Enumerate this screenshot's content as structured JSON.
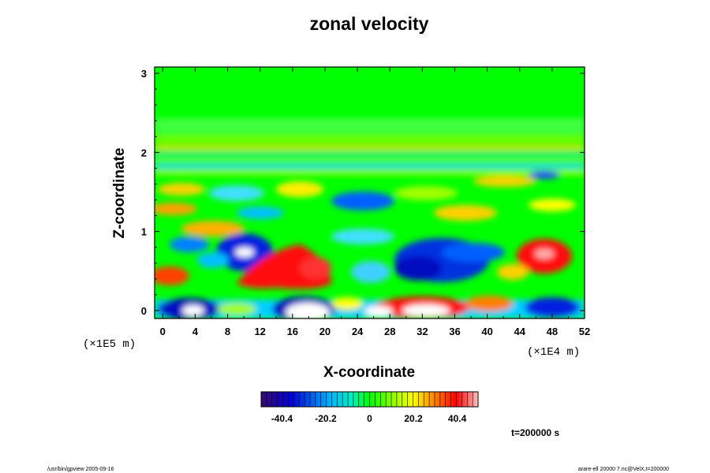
{
  "chart_data": {
    "type": "heatmap",
    "title": "zonal velocity",
    "xlabel": "X-coordinate",
    "ylabel": "Z-coordinate",
    "x_scale_label": "(×1E4 m)",
    "y_scale_label": "(×1E5 m)",
    "x_ticks": [
      0,
      4,
      8,
      12,
      16,
      20,
      24,
      28,
      32,
      36,
      40,
      44,
      48,
      52
    ],
    "y_ticks": [
      0,
      1,
      2,
      3
    ],
    "xlim": [
      -1,
      52
    ],
    "ylim": [
      -0.1,
      3.08
    ],
    "colorbar": {
      "ticks": [
        "-40.4",
        "-20.2",
        "0",
        "20.2",
        "40.4"
      ],
      "tick_values": [
        -40.4,
        -20.2,
        0,
        20.2,
        40.4
      ],
      "range": [
        -50,
        50
      ]
    },
    "time_label": "t=200000 s",
    "features": [
      {
        "x": 11,
        "z": 0.65,
        "value": -48
      },
      {
        "x": 17,
        "z": 0.55,
        "value": 38
      },
      {
        "x": 19,
        "z": 0.0,
        "value": -50
      },
      {
        "x": 32,
        "z": 0.65,
        "value": -38
      },
      {
        "x": 32,
        "z": 0.05,
        "value": 45
      },
      {
        "x": 48,
        "z": 0.65,
        "value": 40
      },
      {
        "x": 4,
        "z": 0.0,
        "value": -48
      },
      {
        "x": 48,
        "z": 0.0,
        "value": -40
      }
    ]
  },
  "footer": {
    "left": "/usr/bin/gpview 2005-09-16",
    "right": "arare-ell 20000 7.nc@VelX,t=200000"
  }
}
